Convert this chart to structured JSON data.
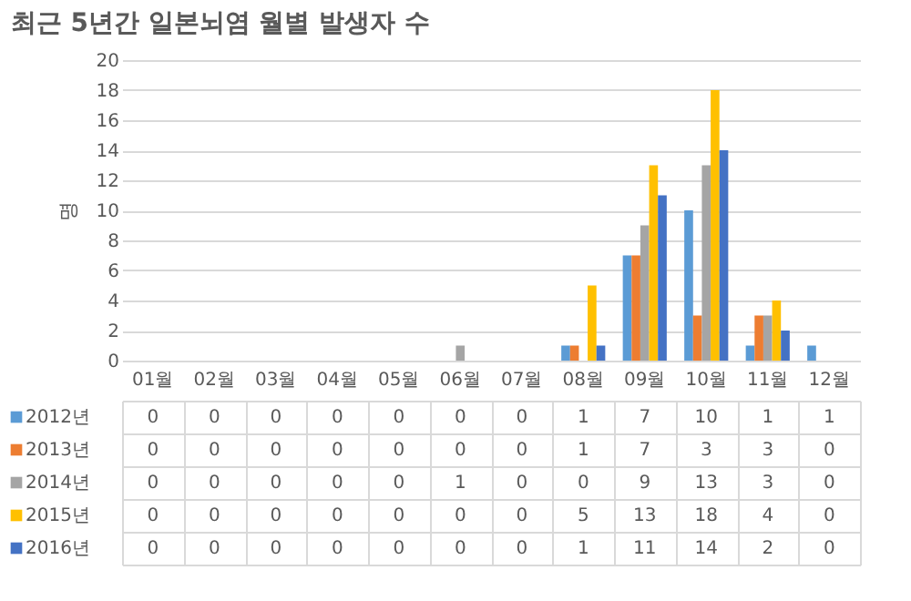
{
  "chart_data": {
    "type": "bar",
    "title": "최근 5년간 일본뇌염 월별 발생자 수",
    "ylabel": "명",
    "categories": [
      "01월",
      "02월",
      "03월",
      "04월",
      "05월",
      "06월",
      "07월",
      "08월",
      "09월",
      "10월",
      "11월",
      "12월"
    ],
    "series": [
      {
        "name": "2012년",
        "color": "#5b9bd5",
        "values": [
          0,
          0,
          0,
          0,
          0,
          0,
          0,
          1,
          7,
          10,
          1,
          1
        ]
      },
      {
        "name": "2013년",
        "color": "#ed7d31",
        "values": [
          0,
          0,
          0,
          0,
          0,
          0,
          0,
          1,
          7,
          3,
          3,
          0
        ]
      },
      {
        "name": "2014년",
        "color": "#a5a5a5",
        "values": [
          0,
          0,
          0,
          0,
          0,
          1,
          0,
          0,
          9,
          13,
          3,
          0
        ]
      },
      {
        "name": "2015년",
        "color": "#ffc000",
        "values": [
          0,
          0,
          0,
          0,
          0,
          0,
          0,
          5,
          13,
          18,
          4,
          0
        ]
      },
      {
        "name": "2016년",
        "color": "#4472c4",
        "values": [
          0,
          0,
          0,
          0,
          0,
          0,
          0,
          1,
          11,
          14,
          2,
          0
        ]
      }
    ],
    "ylim": [
      0,
      20
    ],
    "yticks": [
      0,
      2,
      4,
      6,
      8,
      10,
      12,
      14,
      16,
      18,
      20
    ],
    "grid": "y",
    "legend": "bottom left",
    "data_labels": true
  }
}
